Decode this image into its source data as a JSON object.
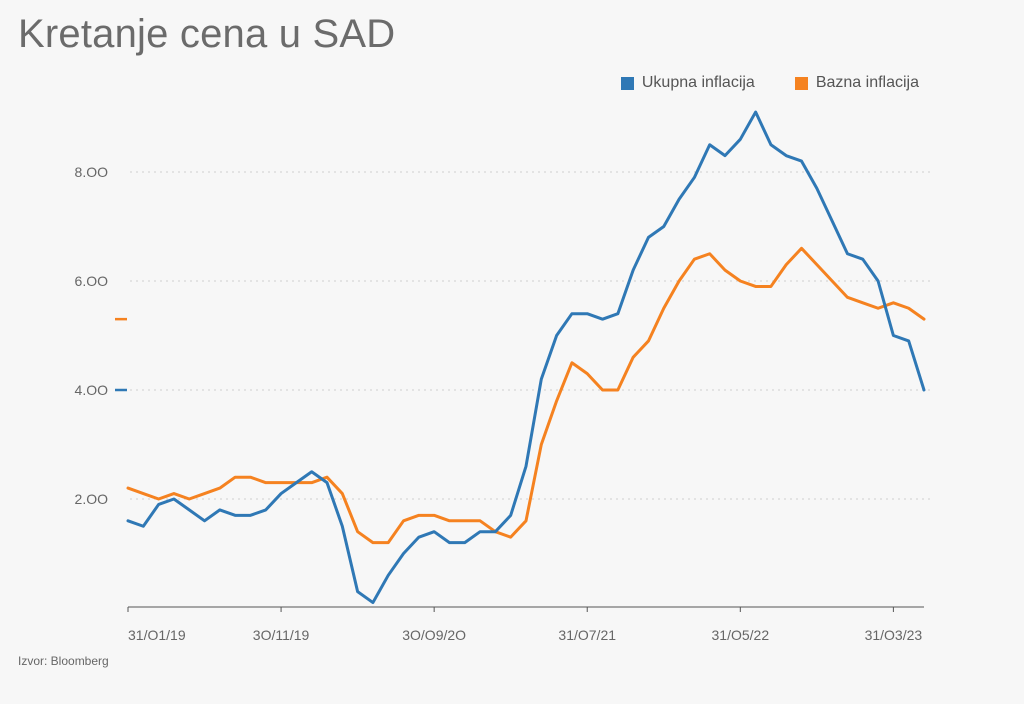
{
  "title": "Kretanje cena u SAD",
  "source": "Izvor: Bloomberg",
  "legend": [
    {
      "name": "Ukupna inflacija",
      "color": "#2f78b5"
    },
    {
      "name": "Bazna inflacija",
      "color": "#f58220"
    }
  ],
  "chart_data": {
    "type": "line",
    "title": "Kretanje cena u SAD",
    "xlabel": "",
    "ylabel": "",
    "ylim": [
      0,
      9.3
    ],
    "yticks": [
      2.0,
      4.0,
      6.0,
      8.0
    ],
    "ytick_labels": [
      "2.OO",
      "4.OO",
      "6.OO",
      "8.OO"
    ],
    "xtick_labels": [
      "31/O1/19",
      "3O/11/19",
      "3O/O9/2O",
      "31/O7/21",
      "31/O5/22",
      "31/O3/23"
    ],
    "xtick_index": [
      0,
      10,
      20,
      30,
      40,
      50
    ],
    "grid": "dotted horizontal",
    "legend_position": "top-right",
    "last_value_markers": [
      4.0,
      5.3
    ],
    "series": [
      {
        "name": "Ukupna inflacija",
        "color": "#2f78b5",
        "values": [
          1.6,
          1.5,
          1.9,
          2.0,
          1.8,
          1.6,
          1.8,
          1.7,
          1.7,
          1.8,
          2.1,
          2.3,
          2.5,
          2.3,
          1.5,
          0.3,
          0.1,
          0.6,
          1.0,
          1.3,
          1.4,
          1.2,
          1.2,
          1.4,
          1.4,
          1.7,
          2.6,
          4.2,
          5.0,
          5.4,
          5.4,
          5.3,
          5.4,
          6.2,
          6.8,
          7.0,
          7.5,
          7.9,
          8.5,
          8.3,
          8.6,
          9.1,
          8.5,
          8.3,
          8.2,
          7.7,
          7.1,
          6.5,
          6.4,
          6.0,
          5.0,
          4.9,
          4.0
        ]
      },
      {
        "name": "Bazna inflacija",
        "color": "#f58220",
        "values": [
          2.2,
          2.1,
          2.0,
          2.1,
          2.0,
          2.1,
          2.2,
          2.4,
          2.4,
          2.3,
          2.3,
          2.3,
          2.3,
          2.4,
          2.1,
          1.4,
          1.2,
          1.2,
          1.6,
          1.7,
          1.7,
          1.6,
          1.6,
          1.6,
          1.4,
          1.3,
          1.6,
          3.0,
          3.8,
          4.5,
          4.3,
          4.0,
          4.0,
          4.6,
          4.9,
          5.5,
          6.0,
          6.4,
          6.5,
          6.2,
          6.0,
          5.9,
          5.9,
          6.3,
          6.6,
          6.3,
          6.0,
          5.7,
          5.6,
          5.5,
          5.6,
          5.5,
          5.3
        ]
      }
    ]
  }
}
